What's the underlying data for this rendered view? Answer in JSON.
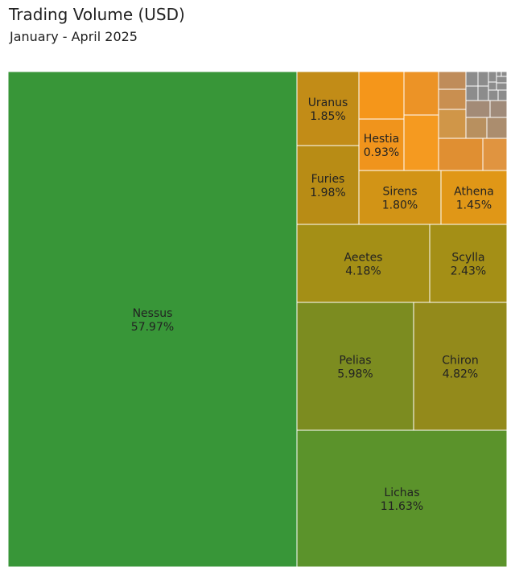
{
  "chart_data": {
    "type": "treemap",
    "title": "Trading Volume (USD)",
    "subtitle": "January - April 2025",
    "items": [
      {
        "name": "Nessus",
        "label": "57.97%",
        "value": 57.97,
        "color": "#389638"
      },
      {
        "name": "Lichas",
        "label": "11.63%",
        "value": 11.63,
        "color": "#5b932b"
      },
      {
        "name": "Pelias",
        "label": "5.98%",
        "value": 5.98,
        "color": "#7c8c20"
      },
      {
        "name": "Chiron",
        "label": "4.82%",
        "value": 4.82,
        "color": "#938a1b"
      },
      {
        "name": "Aeetes",
        "label": "4.18%",
        "value": 4.18,
        "color": "#a48f16"
      },
      {
        "name": "Scylla",
        "label": "2.43%",
        "value": 2.43,
        "color": "#a48f16"
      },
      {
        "name": "Furies",
        "label": "1.98%",
        "value": 1.98,
        "color": "#b88c15"
      },
      {
        "name": "Sirens",
        "label": "1.80%",
        "value": 1.8,
        "color": "#d29416"
      },
      {
        "name": "Athena",
        "label": "1.45%",
        "value": 1.45,
        "color": "#e09717"
      },
      {
        "name": "Uranus",
        "label": "1.85%",
        "value": 1.85,
        "color": "#c28c17"
      },
      {
        "name": "Hestia",
        "label": "0.93%",
        "value": 0.93,
        "color": "#f0941c"
      },
      {
        "name": "",
        "label": "",
        "value": 0.55,
        "color": "#f5961a"
      },
      {
        "name": "",
        "label": "",
        "value": 0.5,
        "color": "#ec9326"
      },
      {
        "name": "",
        "label": "",
        "value": 0.62,
        "color": "#f59a20"
      },
      {
        "name": "",
        "label": "",
        "value": 0.3,
        "color": "#bf8c5a"
      },
      {
        "name": "",
        "label": "",
        "value": 0.25,
        "color": "#c98f50"
      },
      {
        "name": "",
        "label": "",
        "value": 0.35,
        "color": "#d09648"
      },
      {
        "name": "",
        "label": "",
        "value": 0.45,
        "color": "#e08f32"
      },
      {
        "name": "",
        "label": "",
        "value": 0.2,
        "color": "#e09440"
      },
      {
        "name": "",
        "label": "",
        "value": 0.15,
        "color": "#a38b77"
      },
      {
        "name": "",
        "label": "",
        "value": 0.13,
        "color": "#a08b7a"
      },
      {
        "name": "",
        "label": "",
        "value": 0.14,
        "color": "#b8905f"
      },
      {
        "name": "",
        "label": "",
        "value": 0.14,
        "color": "#ab8d6e"
      },
      {
        "name": "",
        "label": "",
        "value": 0.06,
        "color": "#8c8c8c"
      },
      {
        "name": "",
        "label": "",
        "value": 0.05,
        "color": "#8c8c8c"
      },
      {
        "name": "",
        "label": "",
        "value": 0.05,
        "color": "#8c8c8c"
      },
      {
        "name": "",
        "label": "",
        "value": 0.04,
        "color": "#8c8c8c"
      },
      {
        "name": "",
        "label": "",
        "value": 0.04,
        "color": "#8c8c8c"
      },
      {
        "name": "",
        "label": "",
        "value": 0.03,
        "color": "#8c8c8c"
      },
      {
        "name": "",
        "label": "",
        "value": 0.03,
        "color": "#8c8c8c"
      },
      {
        "name": "",
        "label": "",
        "value": 0.03,
        "color": "#8c8c8c"
      },
      {
        "name": "",
        "label": "",
        "value": 0.02,
        "color": "#8c8c8c"
      },
      {
        "name": "",
        "label": "",
        "value": 0.02,
        "color": "#8c8c8c"
      },
      {
        "name": "",
        "label": "",
        "value": 0.02,
        "color": "#8c8c8c"
      },
      {
        "name": "",
        "label": "",
        "value": 0.01,
        "color": "#8c8c8c"
      }
    ]
  }
}
